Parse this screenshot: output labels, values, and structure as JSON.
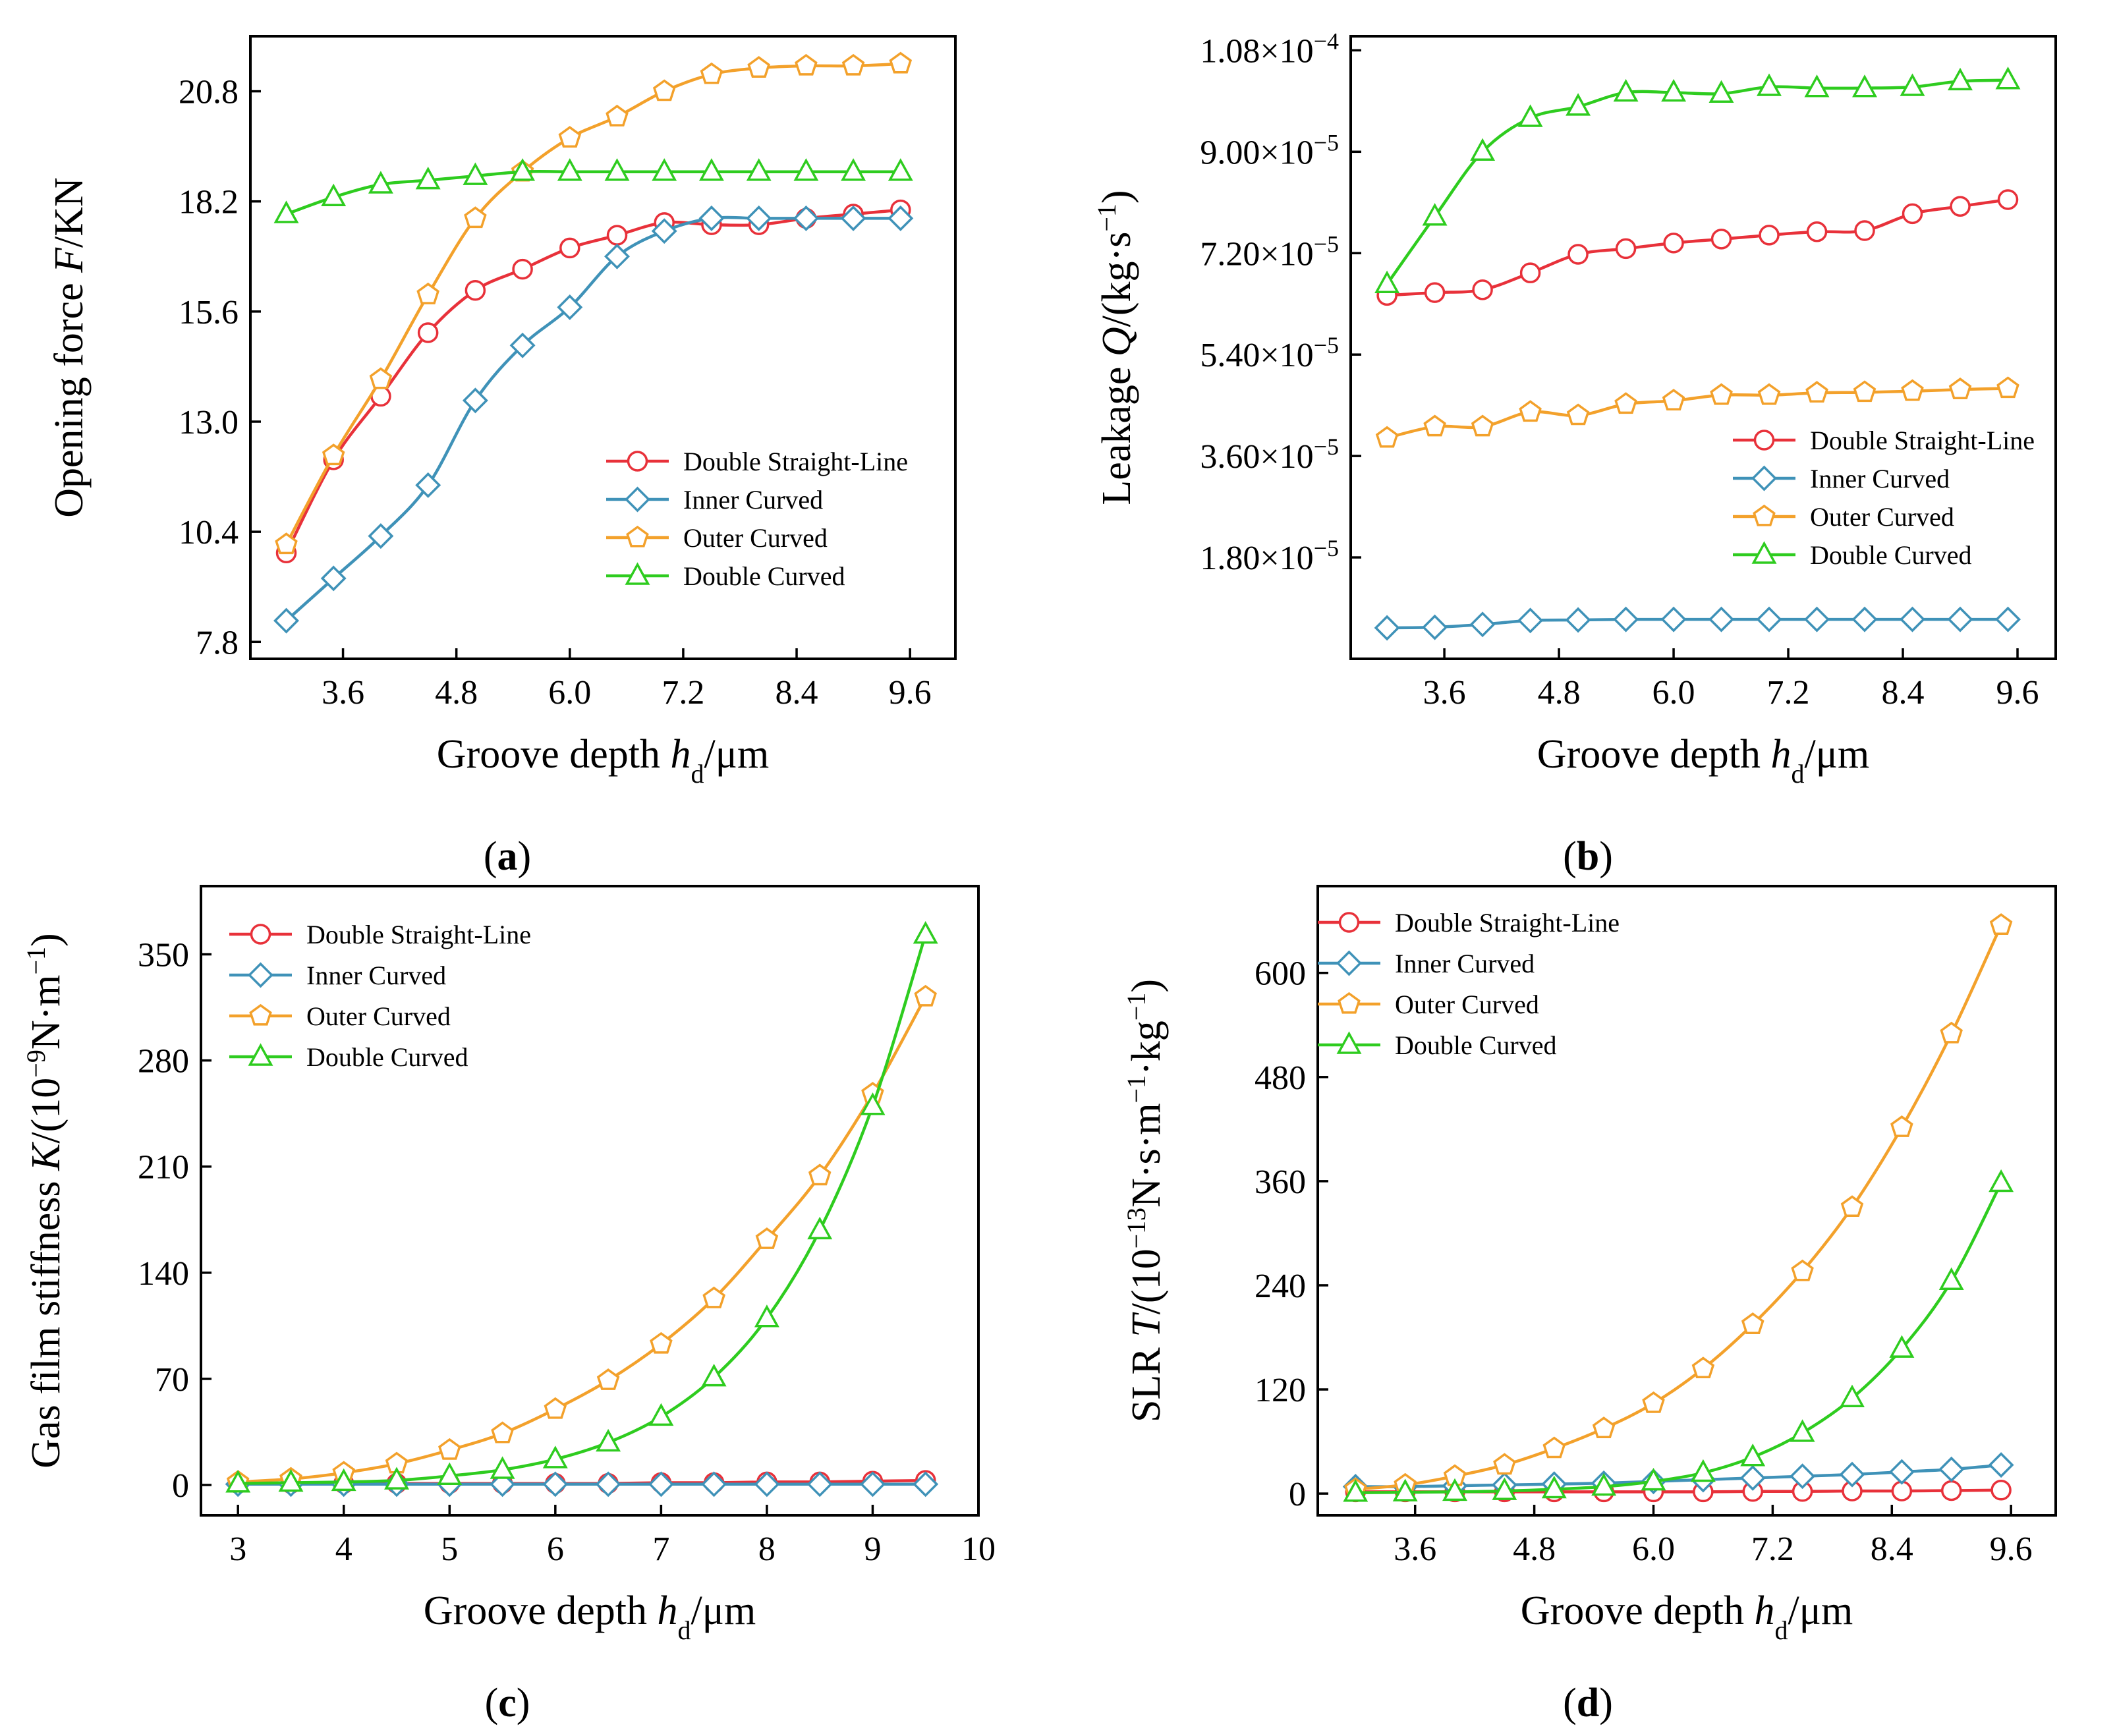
{
  "colors": {
    "double_straight_line": "#e8313a",
    "inner_curved": "#3f92b8",
    "outer_curved": "#f3a12b",
    "double_curved": "#2ecc1f"
  },
  "chart_data": [
    {
      "panel": "(a)",
      "panel_letter": "a",
      "type": "line",
      "ylabel": "Opening force F/KN",
      "ylabel_parts": {
        "prefix": "Opening force ",
        "italic": "F",
        "suffix": "/KN"
      },
      "xlabel": "Groove depth h_d/μm",
      "xlim": [
        2.62,
        10.08
      ],
      "ylim": [
        7.4,
        22.1
      ],
      "xticks": [
        3.6,
        4.8,
        6.0,
        7.2,
        8.4,
        9.6
      ],
      "xtick_labels": [
        "3.6",
        "4.8",
        "6.0",
        "7.2",
        "8.4",
        "9.6"
      ],
      "yticks": [
        7.8,
        10.4,
        13.0,
        15.6,
        18.2,
        20.8
      ],
      "ytick_labels": [
        "7.8",
        "10.4",
        "13.0",
        "15.6",
        "18.2",
        "20.8"
      ],
      "legend_position": "bottom-right",
      "x": [
        3.0,
        3.5,
        4.0,
        4.5,
        5.0,
        5.5,
        6.0,
        6.5,
        7.0,
        7.5,
        8.0,
        8.5,
        9.0,
        9.5
      ],
      "series": [
        {
          "name": "Double Straight-Line",
          "marker": "circle",
          "color_key": "double_straight_line",
          "values": [
            9.9,
            12.1,
            13.6,
            15.1,
            16.1,
            16.6,
            17.1,
            17.4,
            17.7,
            17.65,
            17.65,
            17.8,
            17.9,
            18.0
          ]
        },
        {
          "name": "Inner Curved",
          "marker": "diamond",
          "color_key": "inner_curved",
          "values": [
            8.3,
            9.3,
            10.3,
            11.5,
            13.5,
            14.8,
            15.7,
            16.9,
            17.5,
            17.8,
            17.8,
            17.8,
            17.8,
            17.8
          ]
        },
        {
          "name": "Outer Curved",
          "marker": "pentagon",
          "color_key": "outer_curved",
          "values": [
            10.1,
            12.2,
            14.0,
            16.0,
            17.8,
            18.9,
            19.7,
            20.2,
            20.8,
            21.2,
            21.35,
            21.4,
            21.4,
            21.45
          ]
        },
        {
          "name": "Double Curved",
          "marker": "triangle",
          "color_key": "double_curved",
          "values": [
            17.9,
            18.3,
            18.6,
            18.7,
            18.8,
            18.9,
            18.9,
            18.9,
            18.9,
            18.9,
            18.9,
            18.9,
            18.9,
            18.9
          ]
        }
      ]
    },
    {
      "panel": "(b)",
      "panel_letter": "b",
      "type": "line",
      "ylabel": "Leakage Q/(kg·s⁻¹)",
      "ylabel_parts": {
        "prefix": "Leakage ",
        "italic": "Q",
        "suffix": "/(kg·s",
        "sup": "−1",
        "end": ")"
      },
      "xlabel": "Groove depth h_d/μm",
      "xlim": [
        2.62,
        10.0
      ],
      "ylim": [
        0.0,
        0.0001105
      ],
      "xticks": [
        3.6,
        4.8,
        6.0,
        7.2,
        8.4,
        9.6
      ],
      "xtick_labels": [
        "3.6",
        "4.8",
        "6.0",
        "7.2",
        "8.4",
        "9.6"
      ],
      "yticks": [
        1.8e-05,
        3.6e-05,
        5.4e-05,
        7.2e-05,
        9e-05,
        0.000108
      ],
      "ytick_mantissas": [
        "1.80",
        "3.60",
        "5.40",
        "7.20",
        "9.00",
        "1.08"
      ],
      "ytick_times": "×10",
      "ytick_exponents": [
        "−5",
        "−5",
        "−5",
        "−5",
        "−5",
        "−4"
      ],
      "legend_position": "middle-right",
      "x": [
        3.0,
        3.5,
        4.0,
        4.5,
        5.0,
        5.5,
        6.0,
        6.5,
        7.0,
        7.5,
        8.0,
        8.5,
        9.0,
        9.5
      ],
      "series": [
        {
          "name": "Double Straight-Line",
          "marker": "circle",
          "color_key": "double_straight_line",
          "values": [
            6.45e-05,
            6.5e-05,
            6.55e-05,
            6.85e-05,
            7.18e-05,
            7.28e-05,
            7.38e-05,
            7.45e-05,
            7.52e-05,
            7.58e-05,
            7.6e-05,
            7.9e-05,
            8.03e-05,
            8.15e-05
          ]
        },
        {
          "name": "Inner Curved",
          "marker": "diamond",
          "color_key": "inner_curved",
          "values": [
            5.5e-06,
            5.6e-06,
            6.1e-06,
            6.8e-06,
            6.9e-06,
            7e-06,
            7e-06,
            7e-06,
            7e-06,
            7e-06,
            7e-06,
            7e-06,
            7e-06,
            7e-06
          ]
        },
        {
          "name": "Outer Curved",
          "marker": "pentagon",
          "color_key": "outer_curved",
          "values": [
            3.92e-05,
            4.12e-05,
            4.12e-05,
            4.38e-05,
            4.32e-05,
            4.52e-05,
            4.58e-05,
            4.68e-05,
            4.68e-05,
            4.72e-05,
            4.73e-05,
            4.75e-05,
            4.78e-05,
            4.8e-05
          ]
        },
        {
          "name": "Double Curved",
          "marker": "triangle",
          "color_key": "double_curved",
          "values": [
            6.65e-05,
            7.85e-05,
            9e-05,
            9.6e-05,
            9.8e-05,
            0.0001005,
            0.0001005,
            0.0001003,
            0.0001015,
            0.0001013,
            0.0001013,
            0.0001015,
            0.0001025,
            0.0001027
          ]
        }
      ]
    },
    {
      "panel": "(c)",
      "panel_letter": "c",
      "type": "line",
      "ylabel": "Gas film stiffness K/(10⁻⁹N·m⁻¹)",
      "ylabel_parts": {
        "prefix": "Gas film stiffness ",
        "italic": "K",
        "suffix": "/(10",
        "sup": "−9",
        "mid": "N·m",
        "sup2": "−1",
        "end": ")"
      },
      "xlabel": "Groove depth h_d/μm",
      "xlim": [
        2.65,
        10.0
      ],
      "ylim": [
        -20,
        395
      ],
      "xticks": [
        3,
        4,
        5,
        6,
        7,
        8,
        9,
        10
      ],
      "xtick_labels": [
        "3",
        "4",
        "5",
        "6",
        "7",
        "8",
        "9",
        "10"
      ],
      "yticks": [
        0,
        70,
        140,
        210,
        280,
        350
      ],
      "ytick_labels": [
        "0",
        "70",
        "140",
        "210",
        "280",
        "350"
      ],
      "legend_position": "top-left",
      "x": [
        3.0,
        3.5,
        4.0,
        4.5,
        5.0,
        5.5,
        6.0,
        6.5,
        7.0,
        7.5,
        8.0,
        8.5,
        9.0,
        9.5
      ],
      "series": [
        {
          "name": "Double Straight-Line",
          "marker": "circle",
          "color_key": "double_straight_line",
          "values": [
            1,
            1,
            1,
            1,
            1,
            1,
            1,
            1,
            1.5,
            1.5,
            2,
            2,
            2.5,
            3
          ]
        },
        {
          "name": "Inner Curved",
          "marker": "diamond",
          "color_key": "inner_curved",
          "values": [
            0.5,
            0.5,
            0.5,
            0.5,
            0.5,
            0.5,
            0.5,
            0.5,
            0.5,
            0.5,
            0.5,
            0.5,
            0.5,
            0.5
          ]
        },
        {
          "name": "Outer Curved",
          "marker": "pentagon",
          "color_key": "outer_curved",
          "values": [
            2,
            4,
            8,
            14,
            23,
            34,
            50,
            69,
            93,
            123,
            162,
            204,
            258,
            322
          ]
        },
        {
          "name": "Double Curved",
          "marker": "triangle",
          "color_key": "double_curved",
          "values": [
            1,
            1.5,
            2,
            3,
            6,
            10,
            17,
            28,
            45,
            71,
            110,
            168,
            250,
            363
          ]
        }
      ]
    },
    {
      "panel": "(d)",
      "panel_letter": "d",
      "type": "line",
      "ylabel": "SLR T/(10⁻¹³N·s·m⁻¹·kg⁻¹)",
      "ylabel_parts": {
        "prefix": "SLR ",
        "italic": "T",
        "suffix": "/(10",
        "sup": "−13",
        "mid": "N·s·m",
        "sup2": "−1",
        "mid2": "·kg",
        "sup3": "−1",
        "end": ")"
      },
      "xlabel": "Groove depth h_d/μm",
      "xlim": [
        2.62,
        10.05
      ],
      "ylim": [
        -25,
        700
      ],
      "xticks": [
        3.6,
        4.8,
        6.0,
        7.2,
        8.4,
        9.6
      ],
      "xtick_labels": [
        "3.6",
        "4.8",
        "6.0",
        "7.2",
        "8.4",
        "9.6"
      ],
      "yticks": [
        0,
        120,
        240,
        360,
        480,
        600
      ],
      "ytick_labels": [
        "0",
        "120",
        "240",
        "360",
        "480",
        "600"
      ],
      "legend_position": "top-left",
      "x": [
        3.0,
        3.5,
        4.0,
        4.5,
        5.0,
        5.5,
        6.0,
        6.5,
        7.0,
        7.5,
        8.0,
        8.5,
        9.0,
        9.5
      ],
      "series": [
        {
          "name": "Double Straight-Line",
          "marker": "circle",
          "color_key": "double_straight_line",
          "values": [
            2,
            2,
            2,
            2,
            2,
            2,
            2,
            2,
            2.5,
            2.5,
            3,
            3,
            3.5,
            4
          ]
        },
        {
          "name": "Inner Curved",
          "marker": "diamond",
          "color_key": "inner_curved",
          "values": [
            8,
            8,
            9,
            10,
            11,
            12,
            14,
            16,
            18,
            20,
            22,
            25,
            28,
            33
          ]
        },
        {
          "name": "Outer Curved",
          "marker": "pentagon",
          "color_key": "outer_curved",
          "values": [
            5,
            10,
            20,
            33,
            52,
            75,
            104,
            144,
            195,
            256,
            330,
            422,
            530,
            655
          ]
        },
        {
          "name": "Double Curved",
          "marker": "triangle",
          "color_key": "double_curved",
          "values": [
            1,
            1.5,
            2,
            3,
            5,
            8,
            14,
            24,
            42,
            70,
            110,
            167,
            245,
            358
          ]
        }
      ]
    }
  ]
}
